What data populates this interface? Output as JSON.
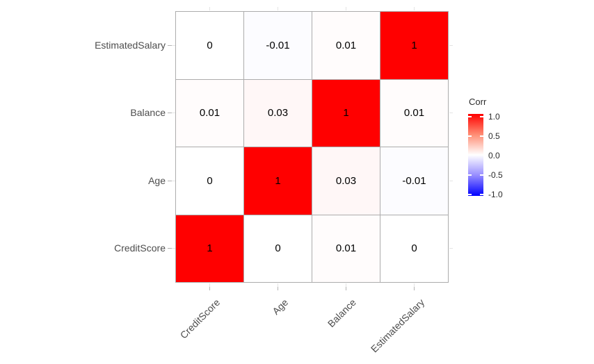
{
  "figure": {
    "background": "#FFFFFF"
  },
  "chart_data": {
    "type": "heatmap",
    "title": "",
    "x_categories": [
      "CreditScore",
      "Age",
      "Balance",
      "EstimatedSalary"
    ],
    "y_categories_top_to_bottom": [
      "EstimatedSalary",
      "Balance",
      "Age",
      "CreditScore"
    ],
    "matrix_rows_top_to_bottom": [
      {
        "row": "EstimatedSalary",
        "values": [
          0,
          -0.01,
          0.01,
          1
        ],
        "labels": [
          "0",
          "-0.01",
          "0.01",
          "1"
        ]
      },
      {
        "row": "Balance",
        "values": [
          0.01,
          0.03,
          1,
          0.01
        ],
        "labels": [
          "0.01",
          "0.03",
          "1",
          "0.01"
        ]
      },
      {
        "row": "Age",
        "values": [
          0,
          1,
          0.03,
          -0.01
        ],
        "labels": [
          "0",
          "1",
          "0.03",
          "-0.01"
        ]
      },
      {
        "row": "CreditScore",
        "values": [
          1,
          0,
          0.01,
          0
        ],
        "labels": [
          "1",
          "0",
          "0.01",
          "0"
        ]
      }
    ],
    "value_range": [
      -1,
      1
    ],
    "grid": true,
    "legend": {
      "title": "Corr",
      "position": "right",
      "tick_labels": [
        "1.0",
        "0.5",
        "0.0",
        "-0.5",
        "-1.0"
      ],
      "tick_values": [
        1.0,
        0.5,
        0.0,
        -0.5,
        -1.0
      ],
      "gradient_stops": [
        {
          "offset": 0,
          "color": "#FF0000"
        },
        {
          "offset": 0.25,
          "color": "#FF8C73"
        },
        {
          "offset": 0.5,
          "color": "#FFFFFF"
        },
        {
          "offset": 0.75,
          "color": "#968CFF"
        },
        {
          "offset": 1,
          "color": "#0000FF"
        }
      ]
    },
    "colors": {
      "high": "#FF0000",
      "mid": "#FFFFFF",
      "low": "#0000FF",
      "tile_border": "#ACACAC",
      "axis_text": "#4D4D4D",
      "cell_text": "#000000",
      "tick_mark": "#B3B3B3",
      "grid_stub": "#E4E4E4",
      "legend_text": "#2B2B2B"
    }
  }
}
